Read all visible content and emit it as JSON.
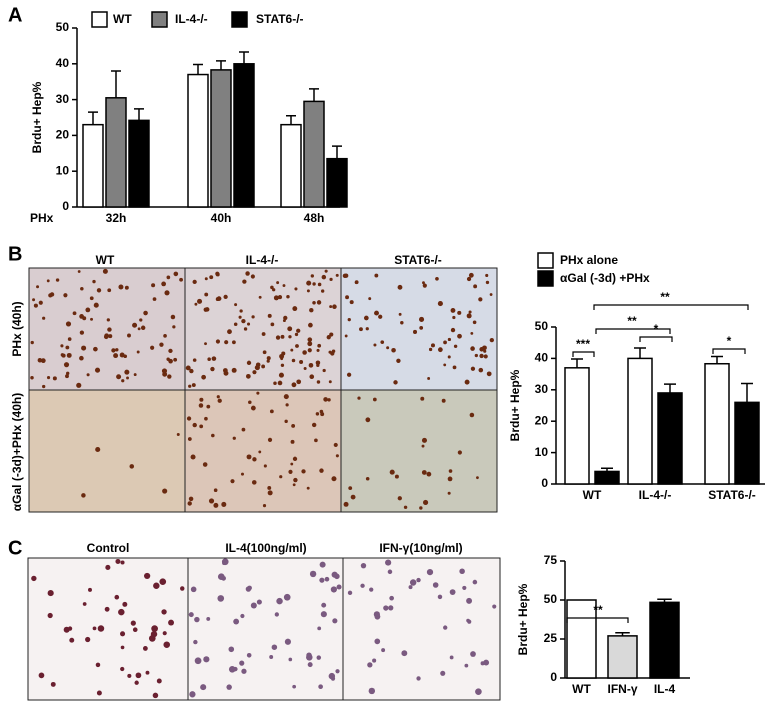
{
  "panels": [
    "A",
    "B",
    "C"
  ],
  "micrographs_b": {
    "columns": [
      "WT",
      "IL-4-/-",
      "STAT6-/-"
    ],
    "rows": [
      "PHx (40h)",
      "αGal (-3d)+PHx (40h)"
    ]
  },
  "micrographs_c": {
    "columns": [
      "Control",
      "IL-4(100ng/ml)",
      "IFN-γ(10ng/ml)"
    ]
  },
  "chart_data": [
    {
      "type": "bar",
      "ylabel": "Brdu+ Hep%",
      "xlabel": "PHx",
      "categories": [
        "32h",
        "40h",
        "48h"
      ],
      "series": [
        {
          "name": "WT",
          "color": "#ffffff",
          "values": [
            23,
            37,
            23
          ],
          "errors": [
            3.5,
            2.8,
            2.5
          ]
        },
        {
          "name": "IL-4-/-",
          "color": "#808080",
          "values": [
            30.5,
            38.3,
            29.5
          ],
          "errors": [
            7.5,
            2.5,
            3.5
          ]
        },
        {
          "name": "STAT6-/-",
          "color": "#000000",
          "values": [
            24.2,
            40,
            13.5
          ],
          "errors": [
            3.2,
            3.3,
            3.5
          ]
        }
      ],
      "ylim": [
        0,
        50
      ],
      "yticks": [
        0,
        10,
        20,
        30,
        40,
        50
      ]
    },
    {
      "type": "bar",
      "ylabel": "Brdu+ Hep%",
      "categories": [
        "WT",
        "IL-4-/-",
        "STAT6-/-"
      ],
      "series": [
        {
          "name": "PHx alone",
          "color": "#ffffff",
          "values": [
            37,
            40,
            38.3
          ],
          "errors": [
            2.8,
            3.3,
            2.3
          ]
        },
        {
          "name": "αGal (-3d) +PHx",
          "color": "#000000",
          "values": [
            4,
            29,
            26
          ],
          "errors": [
            1,
            2.8,
            6
          ]
        }
      ],
      "ylim": [
        0,
        50
      ],
      "yticks": [
        0,
        10,
        20,
        30,
        40,
        50
      ],
      "annotations": [
        "**",
        "**",
        "***",
        "*",
        "*"
      ]
    },
    {
      "type": "bar",
      "ylabel": "Brdu+ Hep%",
      "categories": [
        "WT",
        "IFN-γ",
        "IL-4"
      ],
      "values": [
        50,
        27,
        48.5
      ],
      "errors": [
        null,
        2,
        2
      ],
      "colors": [
        "#ffffff",
        "#d9d9d9",
        "#000000"
      ],
      "ylim": [
        0,
        75
      ],
      "yticks": [
        0,
        25,
        50,
        75
      ],
      "annotations": [
        "**"
      ]
    }
  ]
}
